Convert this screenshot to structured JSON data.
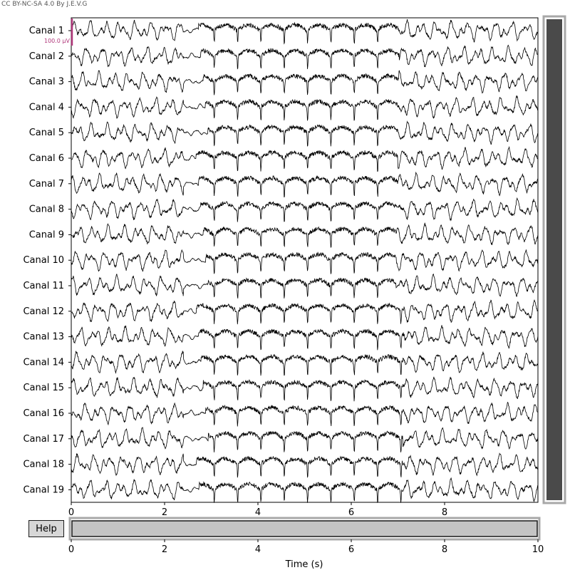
{
  "credit": "CC BY-NC-SA 4.0 By J.E.V.G",
  "help_label": "Help",
  "scale_label": "100.0 µV",
  "colors": {
    "trace": "#000000",
    "scale_bar": "#b0367a",
    "scrollbar_fill": "#4a4a4a",
    "scrollbar_border": "#a8a8a8",
    "time_slider_fill": "#c4c4c4"
  },
  "chart_data": {
    "type": "line",
    "title": "",
    "xlabel": "Time (s)",
    "ylabel": "",
    "xlim": [
      0,
      10
    ],
    "x_ticks": [
      0,
      2,
      4,
      6,
      8
    ],
    "time_slider_ticks": [
      0,
      2,
      4,
      6,
      8,
      10
    ],
    "time_window": [
      0,
      10
    ],
    "scale_bar": "100.0 µV",
    "channels": [
      "Canal 1",
      "Canal 2",
      "Canal 3",
      "Canal 4",
      "Canal 5",
      "Canal 6",
      "Canal 7",
      "Canal 8",
      "Canal 9",
      "Canal 10",
      "Canal 11",
      "Canal 12",
      "Canal 13",
      "Canal 14",
      "Canal 15",
      "Canal 16",
      "Canal 17",
      "Canal 18",
      "Canal 19"
    ],
    "series": [
      {
        "name": "Canal 1",
        "segments": [
          {
            "t": [
              0,
              3.0
            ],
            "pattern": "background"
          },
          {
            "t": [
              3.0,
              7.0
            ],
            "pattern": "spike-and-wave"
          },
          {
            "t": [
              7.0,
              10
            ],
            "pattern": "background"
          }
        ]
      }
    ],
    "event": {
      "onset_s": 2.8,
      "offset_s": 7.1,
      "pattern": "spike-and-wave"
    }
  }
}
